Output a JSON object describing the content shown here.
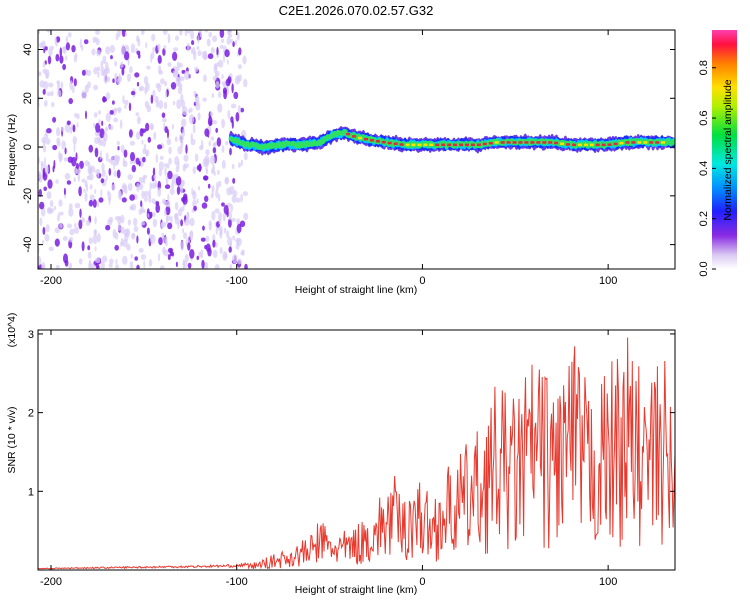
{
  "title": "C2E1.2026.070.02.57.G32",
  "colors": {
    "snr_line": "#e8392e",
    "scatter_low": "#d8ccf6",
    "scatter_high": "#7a1fe0",
    "track_core": "#e02a3a",
    "axis": "#000000"
  },
  "chart_data": [
    {
      "type": "heatmap",
      "title": "C2E1.2026.070.02.57.G32",
      "xlabel": "Height of straight line (km)",
      "ylabel": "Frequency (Hz)",
      "xlim": [
        -207,
        136
      ],
      "ylim": [
        -50,
        48
      ],
      "xticks": [
        -200,
        -100,
        0,
        100
      ],
      "xtick_labels": [
        "-200",
        "-100",
        "0",
        "100"
      ],
      "yticks": [
        -40,
        -20,
        0,
        20,
        40
      ],
      "ytick_labels": [
        "-40",
        "-20",
        "0",
        "20",
        "40"
      ],
      "grid": false,
      "colorbar": {
        "label": "Normalized spectral amplitude",
        "range": [
          0,
          0.95
        ],
        "ticks": [
          0.0,
          0.2,
          0.4,
          0.6,
          0.8
        ],
        "tick_labels": [
          "0.0",
          "0.2",
          "0.4",
          "0.6",
          "0.8"
        ],
        "colormap": "rainbow (white-purple-blue-cyan-green-yellow-orange-red-magenta)"
      },
      "noise_region_x": [
        -207,
        -95
      ],
      "track": {
        "x": [
          -103,
          -95,
          -85,
          -75,
          -65,
          -55,
          -48,
          -42,
          -35,
          -28,
          -20,
          -10,
          0,
          10,
          20,
          30,
          40,
          50,
          60,
          70,
          80,
          90,
          100,
          110,
          120,
          130,
          136
        ],
        "y": [
          3,
          1,
          0,
          1,
          1,
          2,
          5,
          6,
          4,
          3,
          2,
          1,
          1,
          1,
          1,
          1,
          2,
          2,
          2,
          2,
          1,
          1,
          1,
          2,
          2,
          2,
          2
        ]
      }
    },
    {
      "type": "line",
      "xlabel": "Height of straight line (km)",
      "ylabel": "SNR (10 * v/v)",
      "y_multiplier": "(x10^4)",
      "xlim": [
        -207,
        136
      ],
      "ylim": [
        0,
        3.05
      ],
      "xticks": [
        -200,
        -100,
        0,
        100
      ],
      "xtick_labels": [
        "-200",
        "-100",
        "0",
        "100"
      ],
      "yticks": [
        1,
        2,
        3
      ],
      "ytick_labels": [
        "1",
        "2",
        "3"
      ],
      "grid": false,
      "series": [
        {
          "x": [
            -207,
            -180,
            -150,
            -120,
            -100,
            -90,
            -80,
            -70,
            -60,
            -55,
            -50,
            -40,
            -32,
            -25,
            -20,
            -15,
            -10,
            -5,
            0,
            5,
            10,
            20,
            30,
            40,
            50,
            60,
            70,
            80,
            90,
            100,
            110,
            120,
            130,
            136
          ],
          "y": [
            0.02,
            0.03,
            0.04,
            0.05,
            0.06,
            0.1,
            0.2,
            0.3,
            0.45,
            0.7,
            0.5,
            0.5,
            0.65,
            0.85,
            1.1,
            1.2,
            0.9,
            1.3,
            1.15,
            0.9,
            1.2,
            1.5,
            1.8,
            2.4,
            2.2,
            2.8,
            2.4,
            3.0,
            2.3,
            2.6,
            3.05,
            2.4,
            2.8,
            1.8
          ]
        }
      ]
    }
  ]
}
